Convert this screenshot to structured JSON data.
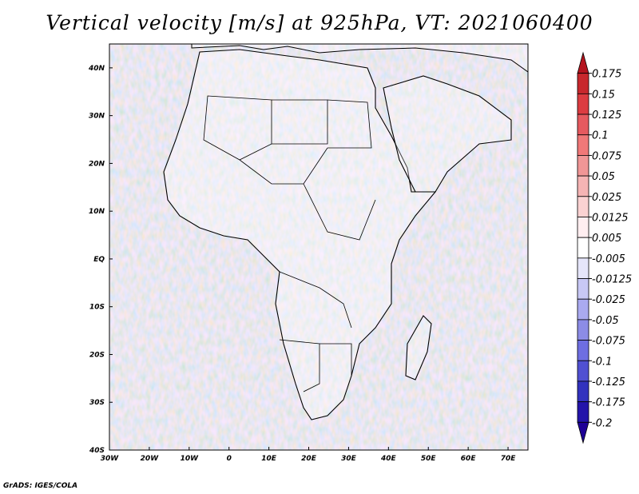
{
  "title": "Vertical velocity [m/s] at 925hPa, VT: 2021060400",
  "credit": "GrADS: IGES/COLA",
  "map": {
    "lon_range": [
      -30,
      75
    ],
    "lat_range": [
      -40,
      45
    ],
    "lon_ticks": [
      "30W",
      "20W",
      "10W",
      "0",
      "10E",
      "20E",
      "30E",
      "40E",
      "50E",
      "60E",
      "70E"
    ],
    "lat_ticks": [
      "40N",
      "30N",
      "20N",
      "10N",
      "EQ",
      "10S",
      "20S",
      "30S",
      "40S"
    ]
  },
  "colorbar": {
    "levels": [
      "0.175",
      "0.15",
      "0.125",
      "0.1",
      "0.075",
      "0.05",
      "0.025",
      "0.0125",
      "0.005",
      "-0.005",
      "-0.0125",
      "-0.025",
      "-0.05",
      "-0.075",
      "-0.1",
      "-0.125",
      "-0.175",
      "-0.2"
    ],
    "colors": [
      "#b4141e",
      "#c8282d",
      "#dc3c41",
      "#e65a5f",
      "#f07878",
      "#f09696",
      "#f5b4b4",
      "#fad2d2",
      "#ffeef0",
      "#ffffff",
      "#e6e6fa",
      "#c8c8f5",
      "#aaaaf0",
      "#8c8ce6",
      "#6e6ee1",
      "#5050d2",
      "#3232be",
      "#2314aa",
      "#1e0096"
    ]
  }
}
